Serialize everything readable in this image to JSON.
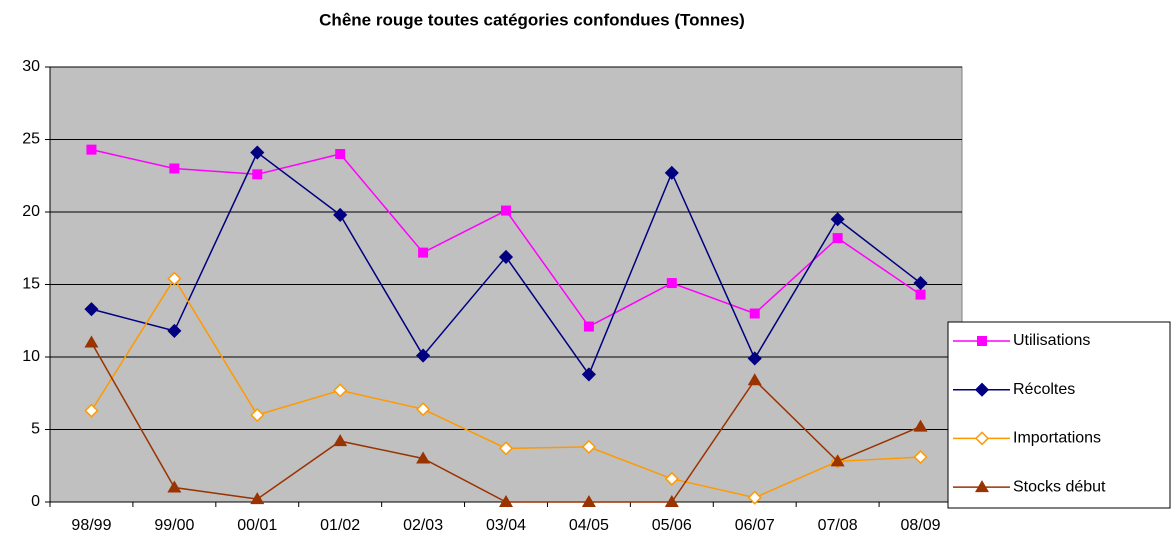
{
  "chart_data": {
    "type": "line",
    "title": "Chêne rouge toutes catégories confondues (Tonnes)",
    "categories": [
      "98/99",
      "99/00",
      "00/01",
      "01/02",
      "02/03",
      "03/04",
      "04/05",
      "05/06",
      "06/07",
      "07/08",
      "08/09"
    ],
    "series": [
      {
        "name": "Utilisations",
        "color": "#ff00ff",
        "marker": "square",
        "values": [
          24.3,
          23.0,
          22.6,
          24.0,
          17.2,
          20.1,
          12.1,
          15.1,
          13.0,
          18.2,
          14.3
        ]
      },
      {
        "name": "Récoltes",
        "color": "#000080",
        "marker": "diamond",
        "values": [
          13.3,
          11.8,
          24.1,
          19.8,
          10.1,
          16.9,
          8.8,
          22.7,
          9.9,
          19.5,
          15.1
        ]
      },
      {
        "name": "Importations",
        "color": "#ff9900",
        "marker": "open-diamond",
        "values": [
          6.3,
          15.4,
          6.0,
          7.7,
          6.4,
          3.7,
          3.8,
          1.6,
          0.3,
          2.8,
          3.1
        ]
      },
      {
        "name": "Stocks début",
        "color": "#993300",
        "marker": "triangle",
        "values": [
          11.0,
          1.0,
          0.2,
          4.2,
          3.0,
          0,
          0,
          0,
          8.4,
          2.8,
          5.2
        ]
      }
    ],
    "ylim": [
      0,
      30
    ],
    "yticks": [
      0,
      5,
      10,
      15,
      20,
      25,
      30
    ],
    "grid": true,
    "legend": "right",
    "plot_background": "#c0c0c0"
  }
}
